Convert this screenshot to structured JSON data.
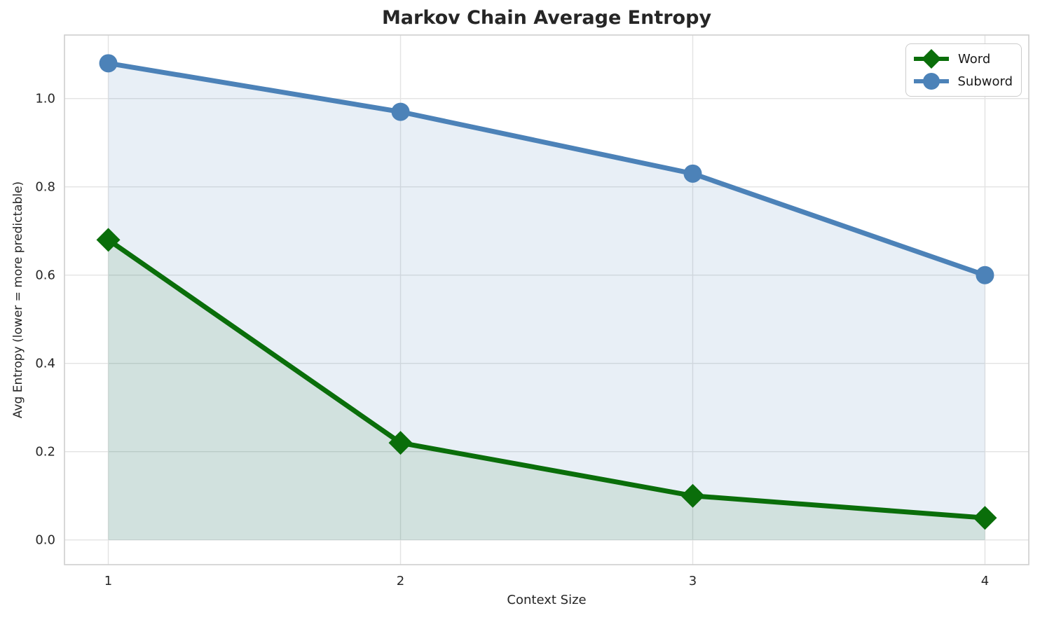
{
  "chart_data": {
    "type": "line",
    "title": "Markov Chain Average Entropy",
    "xlabel": "Context Size",
    "ylabel": "Avg Entropy (lower = more predictable)",
    "x": [
      1,
      2,
      3,
      4
    ],
    "series": [
      {
        "name": "Word",
        "values": [
          0.68,
          0.22,
          0.1,
          0.05
        ],
        "color": "#0a6e0a",
        "marker": "diamond",
        "fill_rgba": "rgba(10,110,10,0.10)"
      },
      {
        "name": "Subword",
        "values": [
          1.08,
          0.97,
          0.83,
          0.6
        ],
        "color": "#4c82b8",
        "marker": "circle",
        "fill_rgba": "rgba(76,130,184,0.13)"
      }
    ],
    "xlim": [
      0.85,
      4.15
    ],
    "ylim": [
      -0.056,
      1.144
    ],
    "xticks": [
      1,
      2,
      3,
      4
    ],
    "xtick_labels": [
      "1",
      "2",
      "3",
      "4"
    ],
    "yticks": [
      0.0,
      0.2,
      0.4,
      0.6,
      0.8,
      1.0
    ],
    "ytick_labels": [
      "0.0",
      "0.2",
      "0.4",
      "0.6",
      "0.8",
      "1.0"
    ],
    "grid": true,
    "area_fill_to": 0,
    "legend_position": "upper right",
    "colors": {
      "grid": "#e3e3e3",
      "spine": "#cfcfcf",
      "text": "#262626",
      "background": "#ffffff"
    }
  }
}
